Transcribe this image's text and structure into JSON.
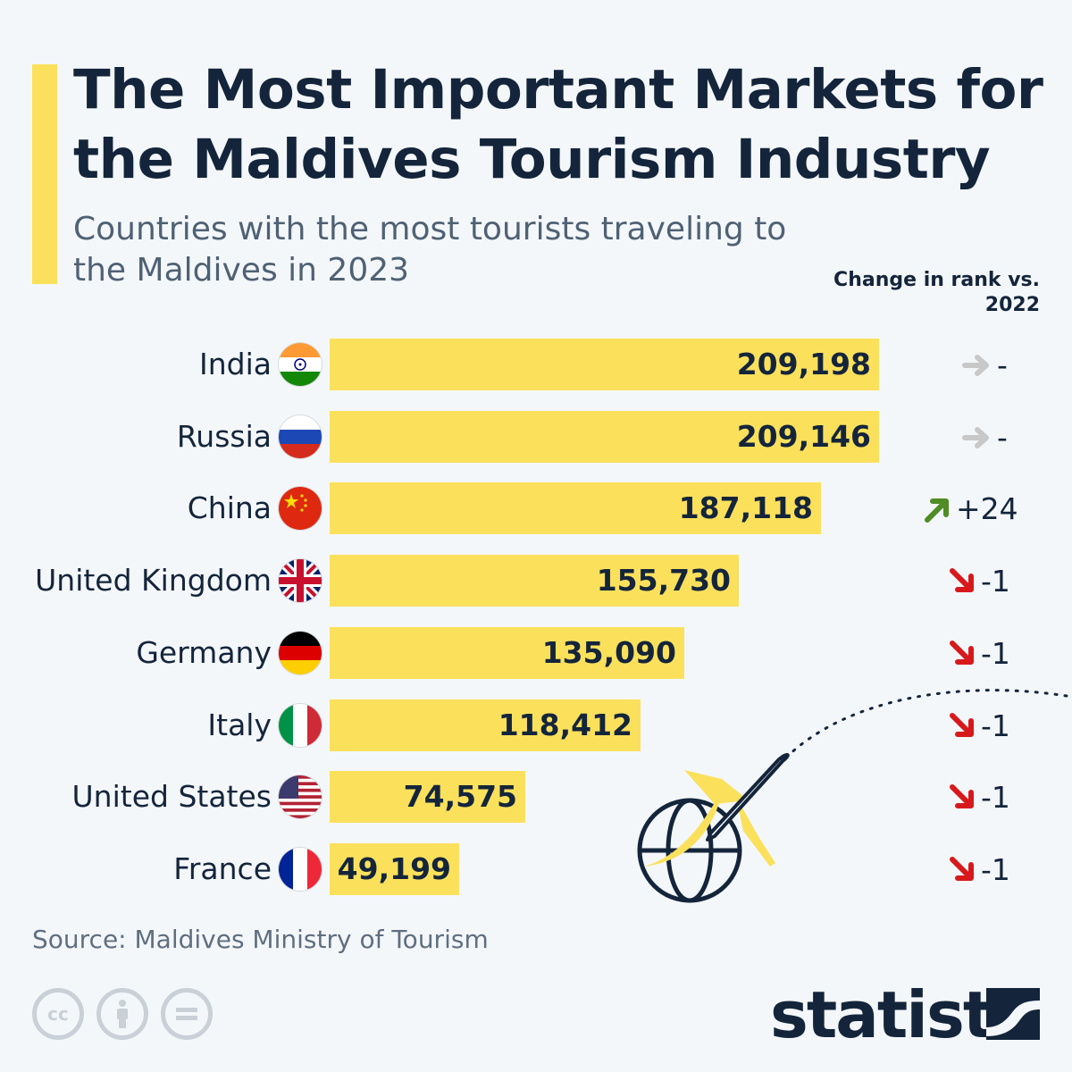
{
  "title": "The Most Important Markets for the Maldives Tourism Industry",
  "subtitle": "Countries with the most tourists traveling to the Maldives in 2023",
  "change_header": "Change in rank vs. 2022",
  "chart_data": {
    "type": "bar",
    "orientation": "horizontal",
    "categories": [
      "India",
      "Russia",
      "China",
      "United Kingdom",
      "Germany",
      "Italy",
      "United States",
      "France"
    ],
    "values": [
      209198,
      209146,
      187118,
      155730,
      135090,
      118412,
      74575,
      49199
    ],
    "value_labels": [
      "209,198",
      "209,146",
      "187,118",
      "155,730",
      "135,090",
      "118,412",
      "74,575",
      "49,199"
    ],
    "rank_change": [
      {
        "direction": "same",
        "label": "-"
      },
      {
        "direction": "same",
        "label": "-"
      },
      {
        "direction": "up",
        "label": "+24"
      },
      {
        "direction": "down",
        "label": "-1"
      },
      {
        "direction": "down",
        "label": "-1"
      },
      {
        "direction": "down",
        "label": "-1"
      },
      {
        "direction": "down",
        "label": "-1"
      },
      {
        "direction": "down",
        "label": "-1"
      }
    ],
    "flags": [
      "india-flag-icon",
      "russia-flag-icon",
      "china-flag-icon",
      "uk-flag-icon",
      "germany-flag-icon",
      "italy-flag-icon",
      "usa-flag-icon",
      "france-flag-icon"
    ],
    "bar_color": "#fbe05c",
    "xlim": [
      0,
      209198
    ]
  },
  "source": "Source: Maldives Ministry of Tourism",
  "brand": "statista",
  "colors": {
    "accent": "#fbe05c",
    "text": "#14253b",
    "up": "#4f8c25",
    "down": "#d7191c",
    "same": "#c8c8c8"
  },
  "license_icons": [
    "cc-icon",
    "attribution-icon",
    "no-derivatives-icon"
  ]
}
